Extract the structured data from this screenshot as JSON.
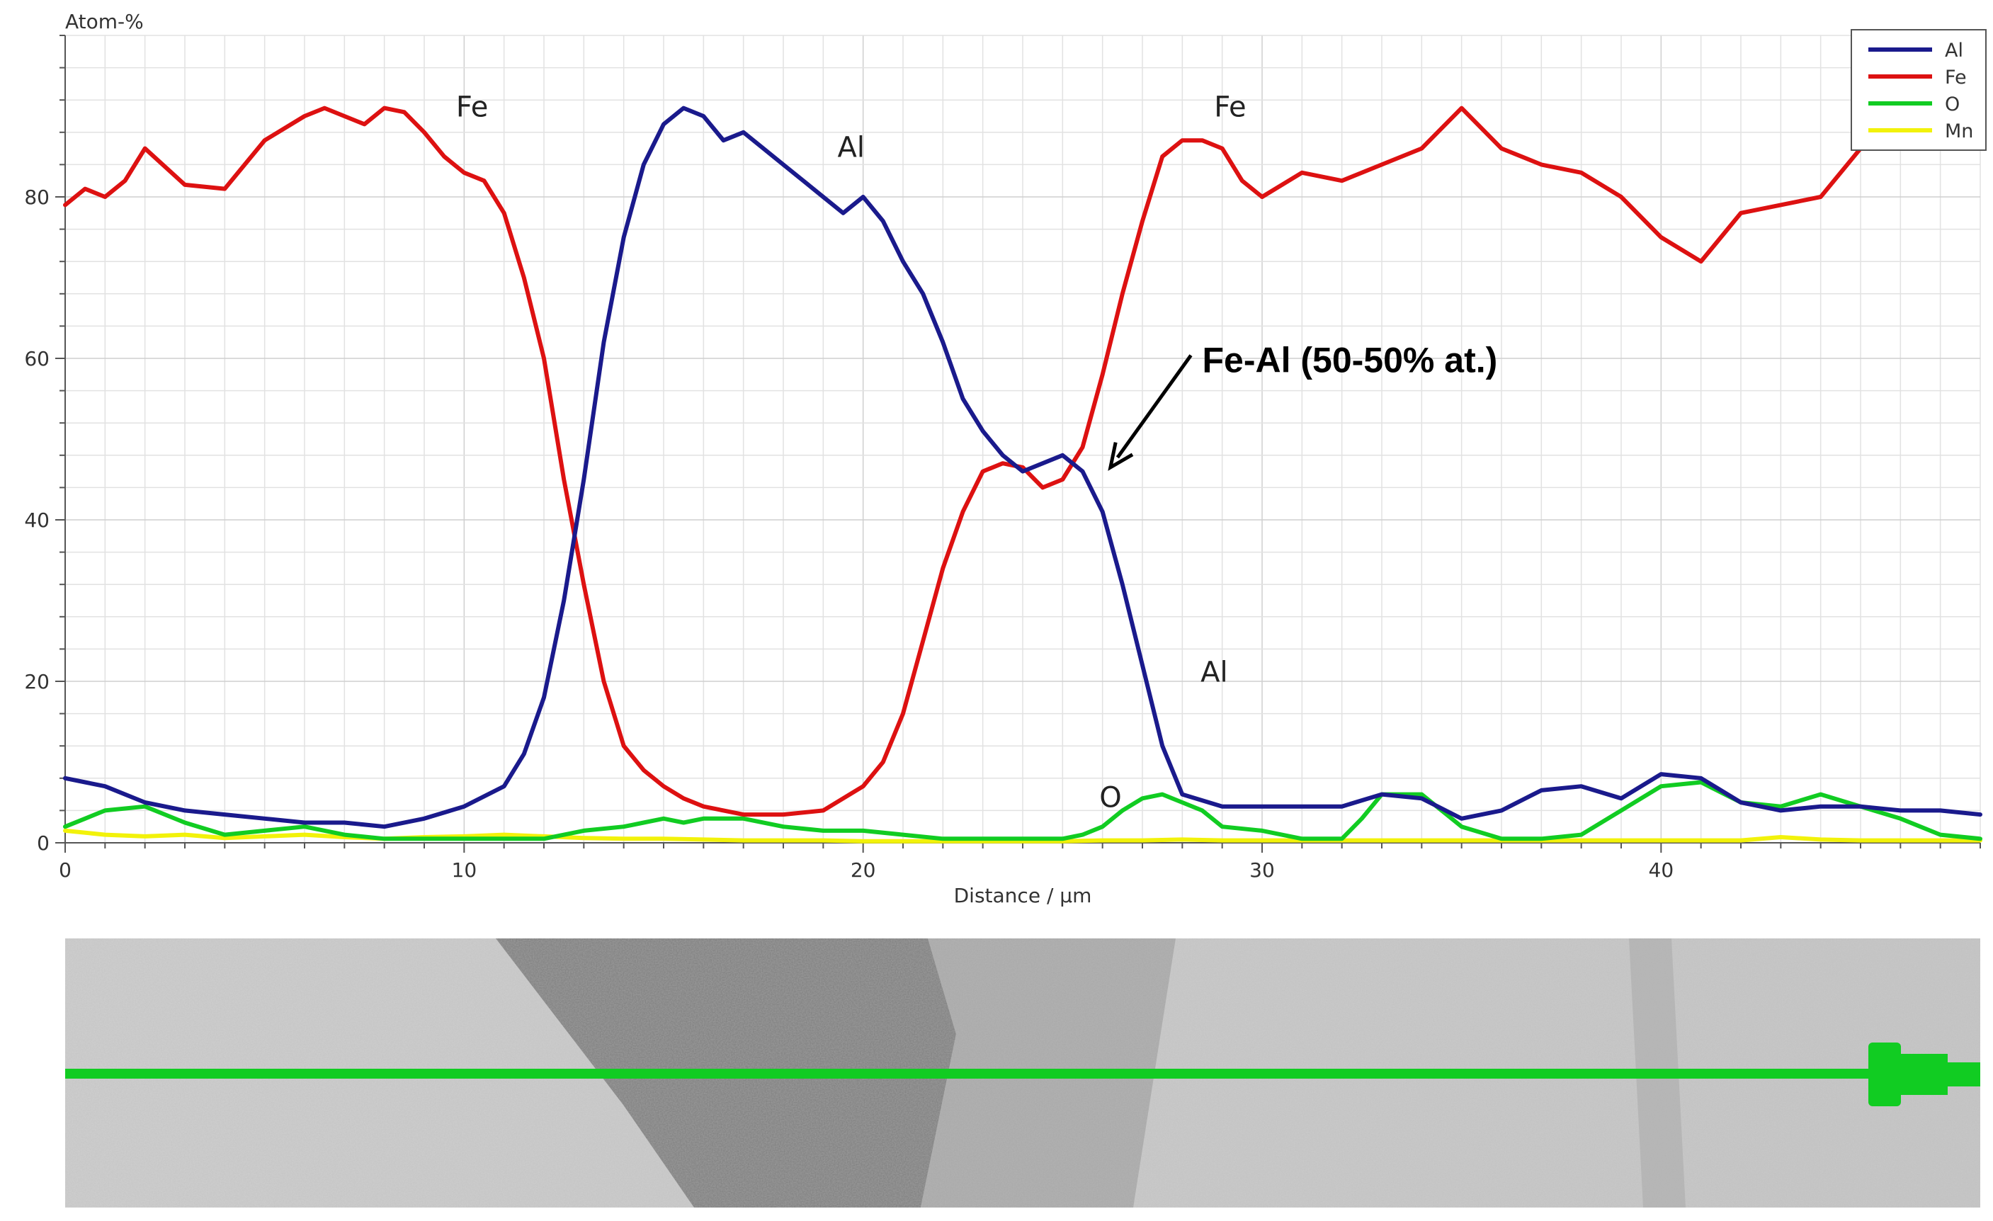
{
  "chart_data": {
    "type": "line",
    "title": "",
    "ylabel": "Atom-%",
    "xlabel": "Distance / µm",
    "xlim": [
      0,
      48
    ],
    "ylim": [
      0,
      100
    ],
    "xticks": [
      0,
      10,
      20,
      30,
      40
    ],
    "yticks": [
      0,
      20,
      40,
      60,
      80
    ],
    "grid": true,
    "legend_position": "top-right",
    "series": [
      {
        "name": "Al",
        "color": "#1a1a8c",
        "x": [
          0,
          0.5,
          1,
          2,
          3,
          4,
          5,
          6,
          7,
          8,
          9,
          10,
          11,
          11.5,
          12,
          12.5,
          13,
          13.5,
          14,
          14.5,
          15,
          15.5,
          16,
          16.5,
          17,
          17.5,
          18,
          18.5,
          19,
          19.5,
          20,
          20.5,
          21,
          21.5,
          22,
          22.5,
          23,
          23.5,
          24,
          24.5,
          25,
          25.5,
          26,
          26.5,
          27,
          27.5,
          28,
          29,
          30,
          31,
          32,
          33,
          34,
          35,
          36,
          37,
          38,
          39,
          40,
          41,
          42,
          43,
          44,
          45,
          46,
          47,
          48
        ],
        "y": [
          8,
          7.5,
          7,
          5,
          4,
          3.5,
          3,
          2.5,
          2.5,
          2,
          3,
          4.5,
          7,
          11,
          18,
          30,
          45,
          62,
          75,
          84,
          89,
          91,
          90,
          87,
          88,
          86,
          84,
          82,
          80,
          78,
          80,
          77,
          72,
          68,
          62,
          55,
          51,
          48,
          46,
          47,
          48,
          46,
          41,
          32,
          22,
          12,
          6,
          4.5,
          4.5,
          4.5,
          4.5,
          6,
          5.5,
          3,
          4,
          6.5,
          7,
          5.5,
          8.5,
          8,
          5,
          4,
          4.5,
          4.5,
          4,
          4,
          3.5
        ]
      },
      {
        "name": "Fe",
        "color": "#dd1111",
        "x": [
          0,
          0.5,
          1,
          1.5,
          2,
          3,
          4,
          5,
          6,
          6.5,
          7,
          7.5,
          8,
          8.5,
          9,
          9.5,
          10,
          10.5,
          11,
          11.5,
          12,
          12.5,
          13,
          13.5,
          14,
          14.5,
          15,
          15.5,
          16,
          17,
          18,
          19,
          20,
          20.5,
          21,
          21.5,
          22,
          22.5,
          23,
          23.5,
          24,
          24.5,
          25,
          25.5,
          26,
          26.5,
          27,
          27.5,
          28,
          28.5,
          29,
          29.5,
          30,
          31,
          32,
          33,
          34,
          35,
          36,
          37,
          38,
          39,
          40,
          41,
          42,
          43,
          44,
          45
        ],
        "y": [
          79,
          81,
          80,
          82,
          86,
          81.5,
          81,
          87,
          90,
          91,
          90,
          89,
          91,
          90.5,
          88,
          85,
          83,
          82,
          78,
          70,
          60,
          45,
          32,
          20,
          12,
          9,
          7,
          5.5,
          4.5,
          3.5,
          3.5,
          4,
          7,
          10,
          16,
          25,
          34,
          41,
          46,
          47,
          46.5,
          44,
          45,
          49,
          58,
          68,
          77,
          85,
          87,
          87,
          86,
          82,
          80,
          83,
          82,
          84,
          86,
          91,
          86,
          84,
          83,
          80,
          75,
          72,
          78,
          79,
          80,
          86
        ]
      },
      {
        "name": "O",
        "color": "#11cc22",
        "x": [
          0,
          0.5,
          1,
          2,
          3,
          4,
          5,
          6,
          7,
          8,
          9,
          10,
          11,
          12,
          13,
          14,
          14.5,
          15,
          15.5,
          16,
          17,
          18,
          19,
          20,
          21,
          22,
          23,
          24,
          25,
          25.5,
          26,
          26.5,
          27,
          27.5,
          28,
          28.5,
          29,
          30,
          31,
          32,
          32.5,
          33,
          34,
          35,
          36,
          37,
          38,
          39,
          40,
          41,
          42,
          43,
          44,
          45,
          46,
          47,
          48
        ],
        "y": [
          2,
          3,
          4,
          4.5,
          2.5,
          1,
          1.5,
          2,
          1,
          0.5,
          0.5,
          0.5,
          0.5,
          0.5,
          1.5,
          2,
          2.5,
          3,
          2.5,
          3,
          3,
          2,
          1.5,
          1.5,
          1,
          0.5,
          0.5,
          0.5,
          0.5,
          1,
          2,
          4,
          5.5,
          6,
          5,
          4,
          2,
          1.5,
          0.5,
          0.5,
          3,
          6,
          6,
          2,
          0.5,
          0.5,
          1,
          4,
          7,
          7.5,
          5,
          4.5,
          6,
          4.5,
          3,
          1,
          0.5
        ]
      },
      {
        "name": "Mn",
        "color": "#f2f20a",
        "x": [
          0,
          1,
          2,
          3,
          4,
          5,
          6,
          7,
          8,
          9,
          10,
          11,
          12,
          13,
          14,
          15,
          16,
          17,
          18,
          19,
          20,
          21,
          22,
          23,
          24,
          25,
          26,
          27,
          28,
          29,
          30,
          31,
          32,
          33,
          34,
          35,
          36,
          37,
          38,
          39,
          40,
          41,
          42,
          43,
          44,
          45,
          46,
          47,
          48
        ],
        "y": [
          1.5,
          1,
          0.8,
          1,
          0.6,
          0.8,
          1,
          0.7,
          0.5,
          0.7,
          0.8,
          1,
          0.8,
          0.6,
          0.5,
          0.5,
          0.4,
          0.3,
          0.3,
          0.3,
          0.2,
          0.2,
          0.2,
          0.2,
          0.2,
          0.2,
          0.3,
          0.3,
          0.4,
          0.3,
          0.3,
          0.3,
          0.3,
          0.3,
          0.3,
          0.3,
          0.3,
          0.3,
          0.3,
          0.3,
          0.3,
          0.3,
          0.3,
          0.7,
          0.4,
          0.3,
          0.3,
          0.3,
          0.3
        ]
      }
    ],
    "annotations": [
      {
        "text": "Fe",
        "x": 10.2,
        "y": 91
      },
      {
        "text": "Al",
        "x": 19.7,
        "y": 86
      },
      {
        "text": "Fe",
        "x": 29.2,
        "y": 91
      },
      {
        "text": "Al",
        "x": 28.8,
        "y": 21
      },
      {
        "text": "O",
        "x": 26.2,
        "y": 5.5
      }
    ],
    "callout": {
      "text": "Fe-Al (50-50% at.)",
      "x": 28.5,
      "y": 59.5,
      "arrow_to": {
        "x": 26.2,
        "y": 46.5
      }
    }
  },
  "micrograph": {
    "scan_line_color": "#11cc22"
  }
}
